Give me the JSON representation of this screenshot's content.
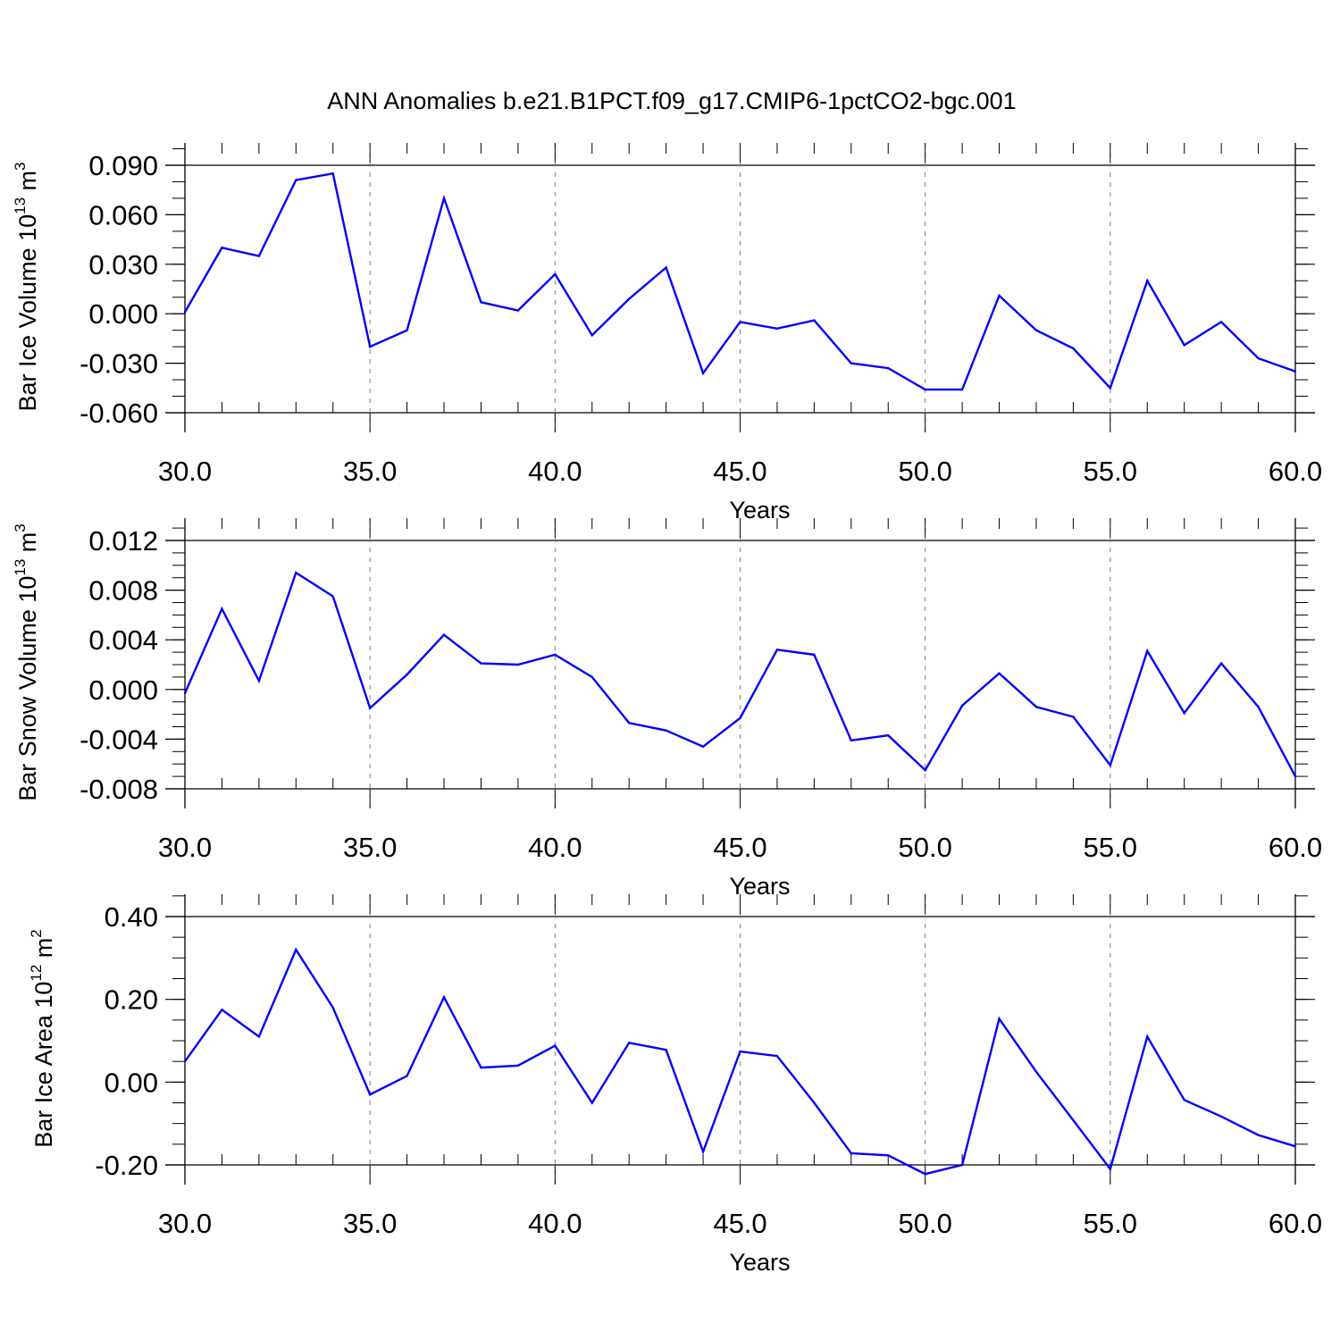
{
  "title": "ANN Anomalies b.e21.B1PCT.f09_g17.CMIP6-1pctCO2-bgc.001",
  "colors": {
    "line": "#0000ff",
    "axis": "#000000",
    "grid": "#808080"
  },
  "chart_data": [
    {
      "type": "line",
      "ylabel": {
        "text": "Bar Ice Volume 10",
        "sup": "13",
        "unit": " m",
        "unit_sup": "3"
      },
      "xlabel": "Years",
      "xlim": [
        30,
        60
      ],
      "ylim": [
        -0.06,
        0.09
      ],
      "xticks": [
        "30.0",
        "35.0",
        "40.0",
        "45.0",
        "50.0",
        "55.0",
        "60.0"
      ],
      "yticks": [
        "0.090",
        "0.060",
        "0.030",
        "0.000",
        "-0.030",
        "-0.060"
      ],
      "grid": "vertical dashed at major x ticks",
      "x": [
        30,
        31,
        32,
        33,
        34,
        35,
        36,
        37,
        38,
        39,
        40,
        41,
        42,
        43,
        44,
        45,
        46,
        47,
        48,
        49,
        50,
        51,
        52,
        53,
        54,
        55,
        56,
        57,
        58,
        59,
        60
      ],
      "values": [
        0.001,
        0.04,
        0.035,
        0.081,
        0.085,
        -0.02,
        -0.01,
        0.07,
        0.007,
        0.002,
        0.024,
        -0.013,
        0.009,
        0.028,
        -0.036,
        -0.005,
        -0.009,
        -0.004,
        -0.03,
        -0.033,
        -0.046,
        -0.046,
        0.011,
        -0.01,
        -0.021,
        -0.045,
        0.02,
        -0.019,
        -0.005,
        -0.027,
        -0.035
      ]
    },
    {
      "type": "line",
      "ylabel": {
        "text": "Bar Snow Volume 10",
        "sup": "13",
        "unit": " m",
        "unit_sup": "3"
      },
      "xlabel": "Years",
      "xlim": [
        30,
        60
      ],
      "ylim": [
        -0.008,
        0.012
      ],
      "xticks": [
        "30.0",
        "35.0",
        "40.0",
        "45.0",
        "50.0",
        "55.0",
        "60.0"
      ],
      "yticks": [
        "0.012",
        "0.008",
        "0.004",
        "0.000",
        "-0.004",
        "-0.008"
      ],
      "grid": "vertical dashed at major x ticks",
      "x": [
        30,
        31,
        32,
        33,
        34,
        35,
        36,
        37,
        38,
        39,
        40,
        41,
        42,
        43,
        44,
        45,
        46,
        47,
        48,
        49,
        50,
        51,
        52,
        53,
        54,
        55,
        56,
        57,
        58,
        59,
        60
      ],
      "values": [
        -0.0003,
        0.0065,
        0.0007,
        0.0094,
        0.0075,
        -0.0015,
        0.0012,
        0.0044,
        0.0021,
        0.002,
        0.0028,
        0.001,
        -0.0027,
        -0.0033,
        -0.0046,
        -0.0023,
        0.0032,
        0.0028,
        -0.0041,
        -0.0037,
        -0.0065,
        -0.0013,
        0.0013,
        -0.0014,
        -0.0022,
        -0.0061,
        0.0031,
        -0.0019,
        0.0021,
        -0.0014,
        -0.007
      ]
    },
    {
      "type": "line",
      "ylabel": {
        "text": "Bar Ice Area 10",
        "sup": "12",
        "unit": " m",
        "unit_sup": "2"
      },
      "xlabel": "Years",
      "xlim": [
        30,
        60
      ],
      "ylim": [
        -0.2,
        0.4
      ],
      "xticks": [
        "30.0",
        "35.0",
        "40.0",
        "45.0",
        "50.0",
        "55.0",
        "60.0"
      ],
      "yticks": [
        "0.40",
        "0.20",
        "0.00",
        "-0.20"
      ],
      "grid": "vertical dashed at major x ticks",
      "x": [
        30,
        31,
        32,
        33,
        34,
        35,
        36,
        37,
        38,
        39,
        40,
        41,
        42,
        43,
        44,
        45,
        46,
        47,
        48,
        49,
        50,
        51,
        52,
        53,
        54,
        55,
        56,
        57,
        58,
        59,
        60
      ],
      "values": [
        0.05,
        0.175,
        0.11,
        0.32,
        0.18,
        -0.03,
        0.015,
        0.205,
        0.035,
        0.04,
        0.088,
        -0.05,
        0.095,
        0.078,
        -0.168,
        0.074,
        0.063,
        -0.05,
        -0.172,
        -0.177,
        -0.222,
        -0.2,
        0.153,
        0.025,
        -0.092,
        -0.21,
        0.11,
        -0.043,
        -0.083,
        -0.128,
        -0.155
      ]
    }
  ]
}
